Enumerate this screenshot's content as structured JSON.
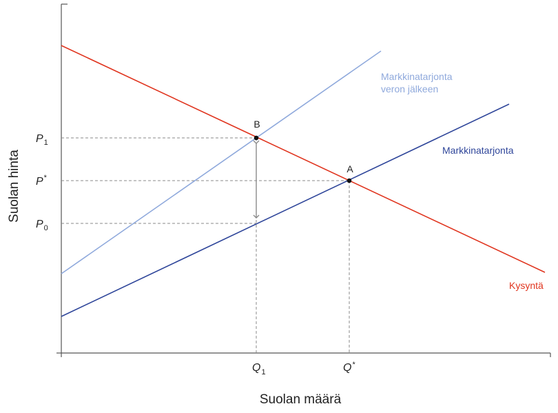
{
  "axes": {
    "x_title": "Suolan määrä",
    "y_title": "Suolan hinta"
  },
  "ticks": {
    "y": [
      {
        "main": "P",
        "sub": "1"
      },
      {
        "main": "P",
        "sub": "*"
      },
      {
        "main": "P",
        "sub": "0"
      }
    ],
    "x": [
      {
        "main": "Q",
        "sub": "1"
      },
      {
        "main": "Q",
        "sub": "*"
      }
    ]
  },
  "curves": {
    "supply_after_tax": {
      "label_line1": "Markkinatarjonta",
      "label_line2": "veron jälkeen",
      "color": "#8fa9dc"
    },
    "supply": {
      "label": "Markkinatarjonta",
      "color": "#2f469a"
    },
    "demand": {
      "label": "Kysyntä",
      "color": "#e0351f"
    }
  },
  "points": {
    "A": "A",
    "B": "B"
  },
  "colors": {
    "axis": "#555555",
    "guide": "#888888",
    "arrow": "#8a8a8a"
  }
}
